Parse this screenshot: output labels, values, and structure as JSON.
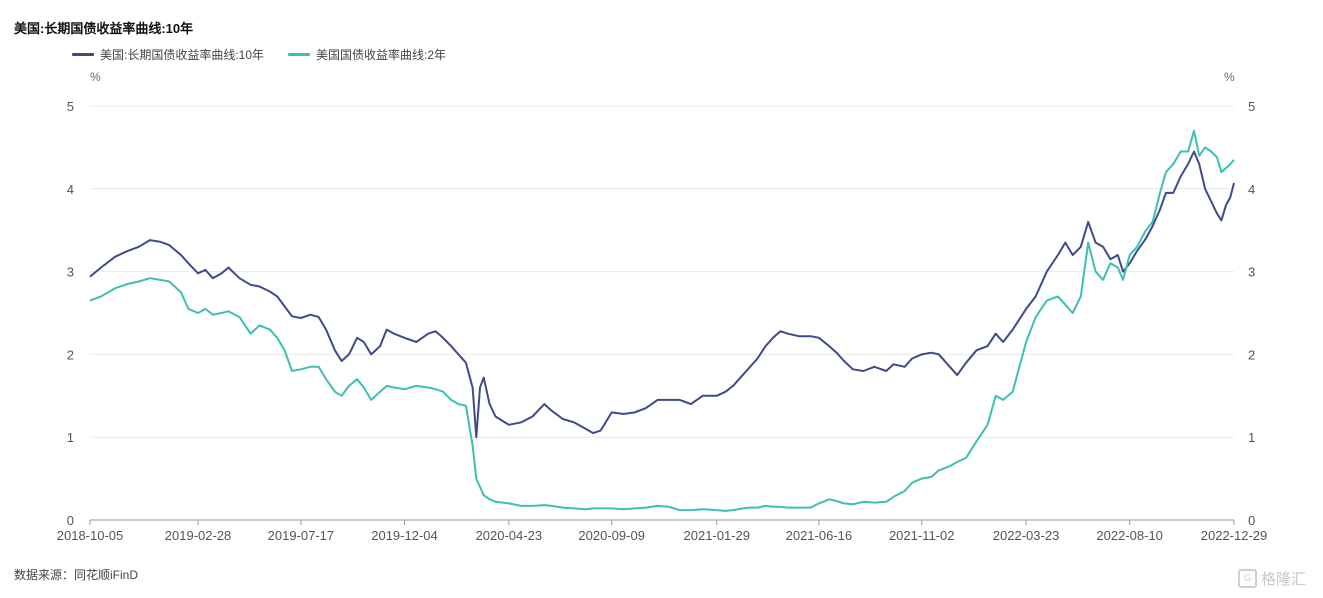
{
  "title": "美国:长期国债收益率曲线:10年",
  "legend": [
    {
      "label": "美国:长期国债收益率曲线:10年",
      "color": "#3f4a8a"
    },
    {
      "label": "美国国债收益率曲线:2年",
      "color": "#3dbfb1"
    }
  ],
  "unit_left": "%",
  "unit_right": "%",
  "footer": "数据来源：同花顺iFinD",
  "watermark": "格隆汇",
  "chart_data": {
    "type": "line",
    "x_ticks": [
      "2018-10-05",
      "2019-02-28",
      "2019-07-17",
      "2019-12-04",
      "2020-04-23",
      "2020-09-09",
      "2021-01-29",
      "2021-06-16",
      "2021-11-02",
      "2022-03-23",
      "2022-08-10",
      "2022-12-29"
    ],
    "ylim": [
      0,
      5
    ],
    "y_ticks": [
      0,
      1,
      2,
      3,
      4,
      5
    ],
    "grid": true,
    "legend_position": "top-left",
    "series": [
      {
        "name": "美国:长期国债收益率曲线:10年",
        "color": "#3f4a8a",
        "points": [
          [
            "2018-10-05",
            2.94
          ],
          [
            "2018-10-20",
            3.05
          ],
          [
            "2018-11-08",
            3.18
          ],
          [
            "2018-11-25",
            3.25
          ],
          [
            "2018-12-10",
            3.3
          ],
          [
            "2018-12-25",
            3.38
          ],
          [
            "2019-01-08",
            3.36
          ],
          [
            "2019-01-20",
            3.32
          ],
          [
            "2019-02-05",
            3.2
          ],
          [
            "2019-02-15",
            3.1
          ],
          [
            "2019-02-28",
            2.98
          ],
          [
            "2019-03-10",
            3.02
          ],
          [
            "2019-03-20",
            2.92
          ],
          [
            "2019-04-01",
            2.98
          ],
          [
            "2019-04-10",
            3.05
          ],
          [
            "2019-04-25",
            2.92
          ],
          [
            "2019-05-10",
            2.84
          ],
          [
            "2019-05-22",
            2.82
          ],
          [
            "2019-06-05",
            2.76
          ],
          [
            "2019-06-15",
            2.7
          ],
          [
            "2019-06-25",
            2.58
          ],
          [
            "2019-07-05",
            2.46
          ],
          [
            "2019-07-17",
            2.44
          ],
          [
            "2019-07-30",
            2.48
          ],
          [
            "2019-08-10",
            2.45
          ],
          [
            "2019-08-20",
            2.3
          ],
          [
            "2019-09-01",
            2.05
          ],
          [
            "2019-09-10",
            1.92
          ],
          [
            "2019-09-20",
            2.0
          ],
          [
            "2019-10-01",
            2.2
          ],
          [
            "2019-10-10",
            2.15
          ],
          [
            "2019-10-20",
            2.0
          ],
          [
            "2019-11-01",
            2.1
          ],
          [
            "2019-11-10",
            2.3
          ],
          [
            "2019-11-20",
            2.25
          ],
          [
            "2019-12-04",
            2.2
          ],
          [
            "2019-12-20",
            2.15
          ],
          [
            "2020-01-05",
            2.25
          ],
          [
            "2020-01-15",
            2.28
          ],
          [
            "2020-01-25",
            2.2
          ],
          [
            "2020-02-05",
            2.1
          ],
          [
            "2020-02-15",
            2.0
          ],
          [
            "2020-02-25",
            1.9
          ],
          [
            "2020-03-05",
            1.6
          ],
          [
            "2020-03-10",
            1.0
          ],
          [
            "2020-03-15",
            1.6
          ],
          [
            "2020-03-20",
            1.72
          ],
          [
            "2020-03-28",
            1.4
          ],
          [
            "2020-04-05",
            1.25
          ],
          [
            "2020-04-23",
            1.15
          ],
          [
            "2020-05-10",
            1.18
          ],
          [
            "2020-05-25",
            1.25
          ],
          [
            "2020-06-10",
            1.4
          ],
          [
            "2020-06-20",
            1.32
          ],
          [
            "2020-07-05",
            1.22
          ],
          [
            "2020-07-20",
            1.18
          ],
          [
            "2020-08-05",
            1.1
          ],
          [
            "2020-08-15",
            1.05
          ],
          [
            "2020-08-25",
            1.08
          ],
          [
            "2020-09-09",
            1.3
          ],
          [
            "2020-09-25",
            1.28
          ],
          [
            "2020-10-10",
            1.3
          ],
          [
            "2020-10-25",
            1.35
          ],
          [
            "2020-11-10",
            1.45
          ],
          [
            "2020-11-25",
            1.45
          ],
          [
            "2020-12-10",
            1.45
          ],
          [
            "2020-12-25",
            1.4
          ],
          [
            "2021-01-10",
            1.5
          ],
          [
            "2021-01-29",
            1.5
          ],
          [
            "2021-02-10",
            1.55
          ],
          [
            "2021-02-20",
            1.62
          ],
          [
            "2021-03-05",
            1.75
          ],
          [
            "2021-03-15",
            1.85
          ],
          [
            "2021-03-25",
            1.95
          ],
          [
            "2021-04-05",
            2.1
          ],
          [
            "2021-04-15",
            2.2
          ],
          [
            "2021-04-25",
            2.28
          ],
          [
            "2021-05-05",
            2.25
          ],
          [
            "2021-05-20",
            2.22
          ],
          [
            "2021-06-05",
            2.22
          ],
          [
            "2021-06-16",
            2.2
          ],
          [
            "2021-06-30",
            2.1
          ],
          [
            "2021-07-10",
            2.02
          ],
          [
            "2021-07-20",
            1.92
          ],
          [
            "2021-08-01",
            1.82
          ],
          [
            "2021-08-15",
            1.8
          ],
          [
            "2021-08-30",
            1.85
          ],
          [
            "2021-09-15",
            1.8
          ],
          [
            "2021-09-25",
            1.88
          ],
          [
            "2021-10-10",
            1.85
          ],
          [
            "2021-10-20",
            1.95
          ],
          [
            "2021-11-02",
            2.0
          ],
          [
            "2021-11-15",
            2.02
          ],
          [
            "2021-11-25",
            2.0
          ],
          [
            "2021-12-10",
            1.85
          ],
          [
            "2021-12-20",
            1.75
          ],
          [
            "2022-01-01",
            1.9
          ],
          [
            "2022-01-15",
            2.05
          ],
          [
            "2022-01-30",
            2.1
          ],
          [
            "2022-02-10",
            2.25
          ],
          [
            "2022-02-20",
            2.15
          ],
          [
            "2022-03-05",
            2.3
          ],
          [
            "2022-03-23",
            2.55
          ],
          [
            "2022-04-05",
            2.7
          ],
          [
            "2022-04-20",
            3.0
          ],
          [
            "2022-05-05",
            3.2
          ],
          [
            "2022-05-15",
            3.35
          ],
          [
            "2022-05-25",
            3.2
          ],
          [
            "2022-06-05",
            3.3
          ],
          [
            "2022-06-15",
            3.6
          ],
          [
            "2022-06-25",
            3.35
          ],
          [
            "2022-07-05",
            3.3
          ],
          [
            "2022-07-15",
            3.15
          ],
          [
            "2022-07-25",
            3.2
          ],
          [
            "2022-08-01",
            3.0
          ],
          [
            "2022-08-10",
            3.1
          ],
          [
            "2022-08-20",
            3.25
          ],
          [
            "2022-09-01",
            3.4
          ],
          [
            "2022-09-10",
            3.55
          ],
          [
            "2022-09-20",
            3.75
          ],
          [
            "2022-09-28",
            3.95
          ],
          [
            "2022-10-08",
            3.95
          ],
          [
            "2022-10-18",
            4.15
          ],
          [
            "2022-10-28",
            4.3
          ],
          [
            "2022-11-05",
            4.45
          ],
          [
            "2022-11-12",
            4.3
          ],
          [
            "2022-11-20",
            4.0
          ],
          [
            "2022-11-28",
            3.85
          ],
          [
            "2022-12-06",
            3.7
          ],
          [
            "2022-12-12",
            3.62
          ],
          [
            "2022-12-18",
            3.8
          ],
          [
            "2022-12-24",
            3.9
          ],
          [
            "2022-12-29",
            4.07
          ]
        ]
      },
      {
        "name": "美国国债收益率曲线:2年",
        "color": "#3dbfb1",
        "points": [
          [
            "2018-10-05",
            2.65
          ],
          [
            "2018-10-20",
            2.7
          ],
          [
            "2018-11-08",
            2.8
          ],
          [
            "2018-11-25",
            2.85
          ],
          [
            "2018-12-10",
            2.88
          ],
          [
            "2018-12-25",
            2.92
          ],
          [
            "2019-01-08",
            2.9
          ],
          [
            "2019-01-20",
            2.88
          ],
          [
            "2019-02-05",
            2.75
          ],
          [
            "2019-02-15",
            2.55
          ],
          [
            "2019-02-28",
            2.5
          ],
          [
            "2019-03-10",
            2.55
          ],
          [
            "2019-03-20",
            2.48
          ],
          [
            "2019-04-01",
            2.5
          ],
          [
            "2019-04-10",
            2.52
          ],
          [
            "2019-04-25",
            2.45
          ],
          [
            "2019-05-10",
            2.25
          ],
          [
            "2019-05-22",
            2.35
          ],
          [
            "2019-06-05",
            2.3
          ],
          [
            "2019-06-15",
            2.2
          ],
          [
            "2019-06-25",
            2.05
          ],
          [
            "2019-07-05",
            1.8
          ],
          [
            "2019-07-17",
            1.82
          ],
          [
            "2019-07-30",
            1.85
          ],
          [
            "2019-08-10",
            1.85
          ],
          [
            "2019-08-20",
            1.7
          ],
          [
            "2019-09-01",
            1.55
          ],
          [
            "2019-09-10",
            1.5
          ],
          [
            "2019-09-20",
            1.62
          ],
          [
            "2019-10-01",
            1.7
          ],
          [
            "2019-10-10",
            1.6
          ],
          [
            "2019-10-20",
            1.45
          ],
          [
            "2019-11-01",
            1.55
          ],
          [
            "2019-11-10",
            1.62
          ],
          [
            "2019-11-20",
            1.6
          ],
          [
            "2019-12-04",
            1.58
          ],
          [
            "2019-12-20",
            1.62
          ],
          [
            "2020-01-05",
            1.6
          ],
          [
            "2020-01-15",
            1.58
          ],
          [
            "2020-01-25",
            1.55
          ],
          [
            "2020-02-05",
            1.45
          ],
          [
            "2020-02-15",
            1.4
          ],
          [
            "2020-02-25",
            1.38
          ],
          [
            "2020-03-05",
            0.9
          ],
          [
            "2020-03-10",
            0.5
          ],
          [
            "2020-03-15",
            0.4
          ],
          [
            "2020-03-20",
            0.3
          ],
          [
            "2020-03-28",
            0.25
          ],
          [
            "2020-04-05",
            0.22
          ],
          [
            "2020-04-23",
            0.2
          ],
          [
            "2020-05-10",
            0.17
          ],
          [
            "2020-05-25",
            0.17
          ],
          [
            "2020-06-10",
            0.18
          ],
          [
            "2020-06-20",
            0.17
          ],
          [
            "2020-07-05",
            0.15
          ],
          [
            "2020-07-20",
            0.14
          ],
          [
            "2020-08-05",
            0.13
          ],
          [
            "2020-08-15",
            0.14
          ],
          [
            "2020-08-25",
            0.14
          ],
          [
            "2020-09-09",
            0.14
          ],
          [
            "2020-09-25",
            0.13
          ],
          [
            "2020-10-10",
            0.14
          ],
          [
            "2020-10-25",
            0.15
          ],
          [
            "2020-11-10",
            0.17
          ],
          [
            "2020-11-25",
            0.16
          ],
          [
            "2020-12-10",
            0.12
          ],
          [
            "2020-12-25",
            0.12
          ],
          [
            "2021-01-10",
            0.13
          ],
          [
            "2021-01-29",
            0.12
          ],
          [
            "2021-02-10",
            0.11
          ],
          [
            "2021-02-20",
            0.12
          ],
          [
            "2021-03-05",
            0.14
          ],
          [
            "2021-03-15",
            0.15
          ],
          [
            "2021-03-25",
            0.15
          ],
          [
            "2021-04-05",
            0.17
          ],
          [
            "2021-04-15",
            0.16
          ],
          [
            "2021-04-25",
            0.16
          ],
          [
            "2021-05-05",
            0.15
          ],
          [
            "2021-05-20",
            0.15
          ],
          [
            "2021-06-05",
            0.15
          ],
          [
            "2021-06-16",
            0.2
          ],
          [
            "2021-06-30",
            0.25
          ],
          [
            "2021-07-10",
            0.23
          ],
          [
            "2021-07-20",
            0.2
          ],
          [
            "2021-08-01",
            0.19
          ],
          [
            "2021-08-15",
            0.22
          ],
          [
            "2021-08-30",
            0.21
          ],
          [
            "2021-09-15",
            0.22
          ],
          [
            "2021-09-25",
            0.28
          ],
          [
            "2021-10-10",
            0.35
          ],
          [
            "2021-10-20",
            0.45
          ],
          [
            "2021-11-02",
            0.5
          ],
          [
            "2021-11-15",
            0.52
          ],
          [
            "2021-11-25",
            0.6
          ],
          [
            "2021-12-10",
            0.65
          ],
          [
            "2021-12-20",
            0.7
          ],
          [
            "2022-01-01",
            0.75
          ],
          [
            "2022-01-15",
            0.95
          ],
          [
            "2022-01-30",
            1.15
          ],
          [
            "2022-02-10",
            1.5
          ],
          [
            "2022-02-20",
            1.45
          ],
          [
            "2022-03-05",
            1.55
          ],
          [
            "2022-03-23",
            2.15
          ],
          [
            "2022-04-05",
            2.45
          ],
          [
            "2022-04-20",
            2.65
          ],
          [
            "2022-05-05",
            2.7
          ],
          [
            "2022-05-15",
            2.6
          ],
          [
            "2022-05-25",
            2.5
          ],
          [
            "2022-06-05",
            2.7
          ],
          [
            "2022-06-15",
            3.35
          ],
          [
            "2022-06-25",
            3.0
          ],
          [
            "2022-07-05",
            2.9
          ],
          [
            "2022-07-15",
            3.1
          ],
          [
            "2022-07-25",
            3.05
          ],
          [
            "2022-08-01",
            2.9
          ],
          [
            "2022-08-10",
            3.2
          ],
          [
            "2022-08-20",
            3.3
          ],
          [
            "2022-09-01",
            3.5
          ],
          [
            "2022-09-10",
            3.6
          ],
          [
            "2022-09-20",
            3.95
          ],
          [
            "2022-09-28",
            4.2
          ],
          [
            "2022-10-08",
            4.3
          ],
          [
            "2022-10-18",
            4.45
          ],
          [
            "2022-10-28",
            4.45
          ],
          [
            "2022-11-05",
            4.7
          ],
          [
            "2022-11-12",
            4.4
          ],
          [
            "2022-11-20",
            4.5
          ],
          [
            "2022-11-28",
            4.45
          ],
          [
            "2022-12-06",
            4.38
          ],
          [
            "2022-12-12",
            4.2
          ],
          [
            "2022-12-18",
            4.25
          ],
          [
            "2022-12-24",
            4.3
          ],
          [
            "2022-12-29",
            4.35
          ]
        ]
      }
    ]
  }
}
